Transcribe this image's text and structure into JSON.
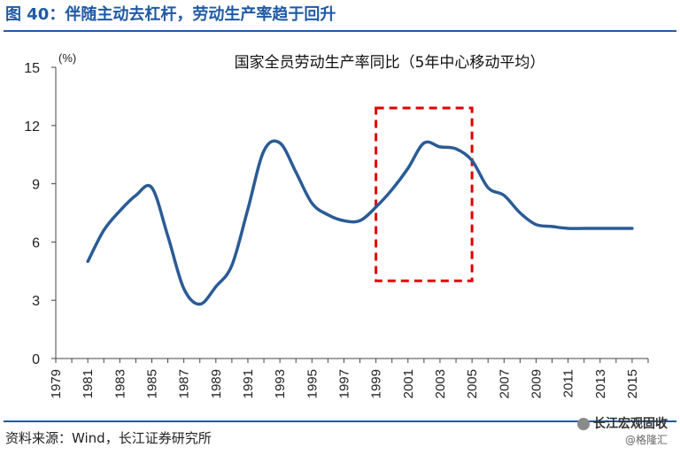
{
  "figure_title": "图 40：伴随主动去杠杆，劳动生产率趋于回升",
  "source_text": "资料来源：Wind，长江证券研究所",
  "watermark": {
    "brand": "长江宏观固收",
    "account": "@格隆汇"
  },
  "colors": {
    "line": "#2a5b95",
    "highlight_box": "#e00000",
    "title": "#1f5aa6",
    "axis": "#444444"
  },
  "chart_data": {
    "type": "line",
    "title": "国家全员劳动生产率同比（5年中心移动平均）",
    "unit_label": "(%)",
    "xlabel": "",
    "ylabel": "",
    "ylim": [
      0,
      15
    ],
    "yticks": [
      0,
      3,
      6,
      9,
      12,
      15
    ],
    "xlim": [
      1979,
      2016
    ],
    "xticks": [
      1979,
      1981,
      1983,
      1985,
      1987,
      1989,
      1991,
      1993,
      1995,
      1997,
      1999,
      2001,
      2003,
      2005,
      2007,
      2009,
      2011,
      2013,
      2015
    ],
    "grid": false,
    "legend": "none",
    "series": [
      {
        "x": [
          1981,
          1982,
          1983,
          1984,
          1985,
          1986,
          1987,
          1988,
          1989,
          1990,
          1991,
          1992,
          1993,
          1994,
          1995,
          1996,
          1997,
          1998,
          1999,
          2000,
          2001,
          2002,
          2003,
          2004,
          2005,
          2006,
          2007,
          2008,
          2009,
          2010,
          2011,
          2012,
          2013,
          2014,
          2015
        ],
        "values": [
          5.0,
          6.6,
          7.6,
          8.4,
          8.8,
          6.3,
          3.6,
          2.8,
          3.7,
          4.8,
          7.7,
          10.7,
          11.1,
          9.6,
          8.0,
          7.4,
          7.1,
          7.1,
          7.8,
          8.7,
          9.8,
          11.1,
          10.9,
          10.8,
          10.2,
          8.8,
          8.4,
          7.5,
          6.9,
          6.8,
          6.7,
          6.7,
          6.7,
          6.7,
          6.7
        ]
      }
    ],
    "highlight_range": {
      "x": [
        1999,
        2005
      ],
      "y": [
        4.0,
        12.9
      ]
    }
  }
}
